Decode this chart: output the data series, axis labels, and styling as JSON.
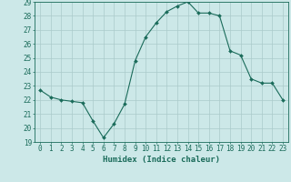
{
  "x": [
    0,
    1,
    2,
    3,
    4,
    5,
    6,
    7,
    8,
    9,
    10,
    11,
    12,
    13,
    14,
    15,
    16,
    17,
    18,
    19,
    20,
    21,
    22,
    23
  ],
  "y": [
    22.7,
    22.2,
    22.0,
    21.9,
    21.8,
    20.5,
    19.3,
    20.3,
    21.7,
    24.8,
    26.5,
    27.5,
    28.3,
    28.7,
    29.0,
    28.2,
    28.2,
    28.0,
    25.5,
    25.2,
    23.5,
    23.2,
    23.2,
    22.0
  ],
  "line_color": "#1a6b5a",
  "marker": "D",
  "marker_size": 2.0,
  "background_color": "#cce8e8",
  "grid_color": "#aacaca",
  "xlabel": "Humidex (Indice chaleur)",
  "ylim": [
    19,
    29
  ],
  "xlim": [
    -0.5,
    23.5
  ],
  "yticks": [
    19,
    20,
    21,
    22,
    23,
    24,
    25,
    26,
    27,
    28,
    29
  ],
  "xticks": [
    0,
    1,
    2,
    3,
    4,
    5,
    6,
    7,
    8,
    9,
    10,
    11,
    12,
    13,
    14,
    15,
    16,
    17,
    18,
    19,
    20,
    21,
    22,
    23
  ],
  "tick_fontsize": 5.5,
  "xlabel_fontsize": 6.5,
  "label_color": "#1a6b5a"
}
